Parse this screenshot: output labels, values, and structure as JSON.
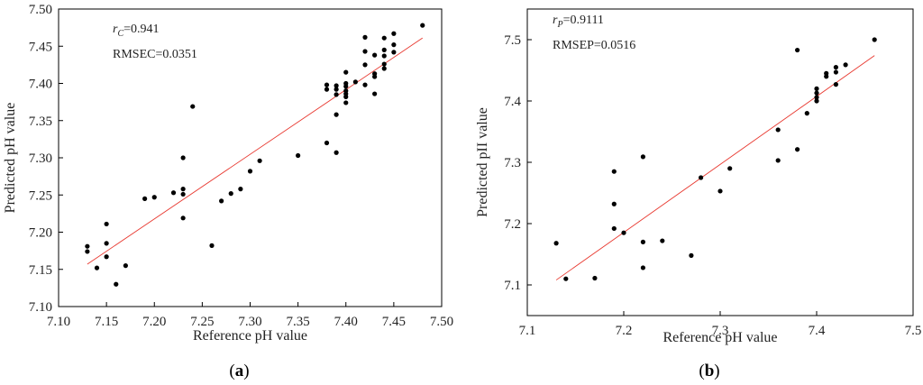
{
  "chart_data": [
    {
      "type": "scatter",
      "panel_label": "a",
      "xlabel": "Reference pH value",
      "ylabel": "Predicted pH value",
      "xlim": [
        7.1,
        7.5
      ],
      "ylim": [
        7.1,
        7.5
      ],
      "xticks": [
        "7.10",
        "7.15",
        "7.20",
        "7.25",
        "7.30",
        "7.35",
        "7.40",
        "7.45",
        "7.50"
      ],
      "yticks": [
        "7.10",
        "7.15",
        "7.20",
        "7.25",
        "7.30",
        "7.35",
        "7.40",
        "7.45",
        "7.50"
      ],
      "annotation": {
        "r_symbol": "r",
        "r_sub": "C",
        "r_value": "=0.941",
        "rmse_text": "RMSEC=0.0351"
      },
      "fit_line": {
        "x": [
          7.13,
          7.48
        ],
        "y": [
          7.157,
          7.461
        ]
      },
      "points": [
        [
          7.13,
          7.181
        ],
        [
          7.13,
          7.174
        ],
        [
          7.14,
          7.152
        ],
        [
          7.15,
          7.211
        ],
        [
          7.15,
          7.185
        ],
        [
          7.15,
          7.167
        ],
        [
          7.16,
          7.13
        ],
        [
          7.17,
          7.155
        ],
        [
          7.19,
          7.245
        ],
        [
          7.2,
          7.247
        ],
        [
          7.22,
          7.253
        ],
        [
          7.23,
          7.3
        ],
        [
          7.23,
          7.258
        ],
        [
          7.23,
          7.251
        ],
        [
          7.23,
          7.219
        ],
        [
          7.24,
          7.369
        ],
        [
          7.26,
          7.182
        ],
        [
          7.27,
          7.242
        ],
        [
          7.28,
          7.252
        ],
        [
          7.29,
          7.258
        ],
        [
          7.3,
          7.282
        ],
        [
          7.31,
          7.296
        ],
        [
          7.35,
          7.303
        ],
        [
          7.38,
          7.398
        ],
        [
          7.38,
          7.392
        ],
        [
          7.38,
          7.32
        ],
        [
          7.39,
          7.397
        ],
        [
          7.39,
          7.392
        ],
        [
          7.39,
          7.385
        ],
        [
          7.39,
          7.358
        ],
        [
          7.39,
          7.307
        ],
        [
          7.4,
          7.415
        ],
        [
          7.4,
          7.4
        ],
        [
          7.4,
          7.396
        ],
        [
          7.4,
          7.39
        ],
        [
          7.4,
          7.386
        ],
        [
          7.4,
          7.382
        ],
        [
          7.4,
          7.374
        ],
        [
          7.41,
          7.402
        ],
        [
          7.42,
          7.462
        ],
        [
          7.42,
          7.443
        ],
        [
          7.42,
          7.425
        ],
        [
          7.42,
          7.398
        ],
        [
          7.43,
          7.438
        ],
        [
          7.43,
          7.413
        ],
        [
          7.43,
          7.409
        ],
        [
          7.43,
          7.386
        ],
        [
          7.44,
          7.461
        ],
        [
          7.44,
          7.445
        ],
        [
          7.44,
          7.437
        ],
        [
          7.44,
          7.426
        ],
        [
          7.44,
          7.42
        ],
        [
          7.45,
          7.467
        ],
        [
          7.45,
          7.452
        ],
        [
          7.45,
          7.442
        ],
        [
          7.48,
          7.478
        ]
      ]
    },
    {
      "type": "scatter",
      "panel_label": "b",
      "xlabel": "Reference pH value",
      "ylabel": "Predicted pII value",
      "xlim": [
        7.1,
        7.5
      ],
      "ylim": [
        7.05,
        7.55
      ],
      "xticks": [
        "7.1",
        "7.2",
        "7.3",
        "7.4",
        "7.5"
      ],
      "yticks": [
        "7.1",
        "7.2",
        "7.3",
        "7.4",
        "7.5"
      ],
      "annotation": {
        "r_symbol": "r",
        "r_sub": "P",
        "r_value": "=0.9111",
        "rmse_text": "RMSEP=0.0516"
      },
      "fit_line": {
        "x": [
          7.13,
          7.46
        ],
        "y": [
          7.108,
          7.474
        ]
      },
      "points": [
        [
          7.13,
          7.168
        ],
        [
          7.14,
          7.11
        ],
        [
          7.17,
          7.111
        ],
        [
          7.19,
          7.285
        ],
        [
          7.19,
          7.232
        ],
        [
          7.19,
          7.192
        ],
        [
          7.2,
          7.185
        ],
        [
          7.22,
          7.309
        ],
        [
          7.22,
          7.17
        ],
        [
          7.22,
          7.128
        ],
        [
          7.24,
          7.172
        ],
        [
          7.27,
          7.148
        ],
        [
          7.28,
          7.275
        ],
        [
          7.3,
          7.253
        ],
        [
          7.31,
          7.29
        ],
        [
          7.36,
          7.353
        ],
        [
          7.36,
          7.303
        ],
        [
          7.38,
          7.483
        ],
        [
          7.38,
          7.321
        ],
        [
          7.39,
          7.38
        ],
        [
          7.4,
          7.42
        ],
        [
          7.4,
          7.413
        ],
        [
          7.4,
          7.406
        ],
        [
          7.4,
          7.4
        ],
        [
          7.41,
          7.445
        ],
        [
          7.41,
          7.44
        ],
        [
          7.42,
          7.455
        ],
        [
          7.42,
          7.447
        ],
        [
          7.42,
          7.427
        ],
        [
          7.43,
          7.459
        ],
        [
          7.46,
          7.5
        ]
      ]
    }
  ]
}
